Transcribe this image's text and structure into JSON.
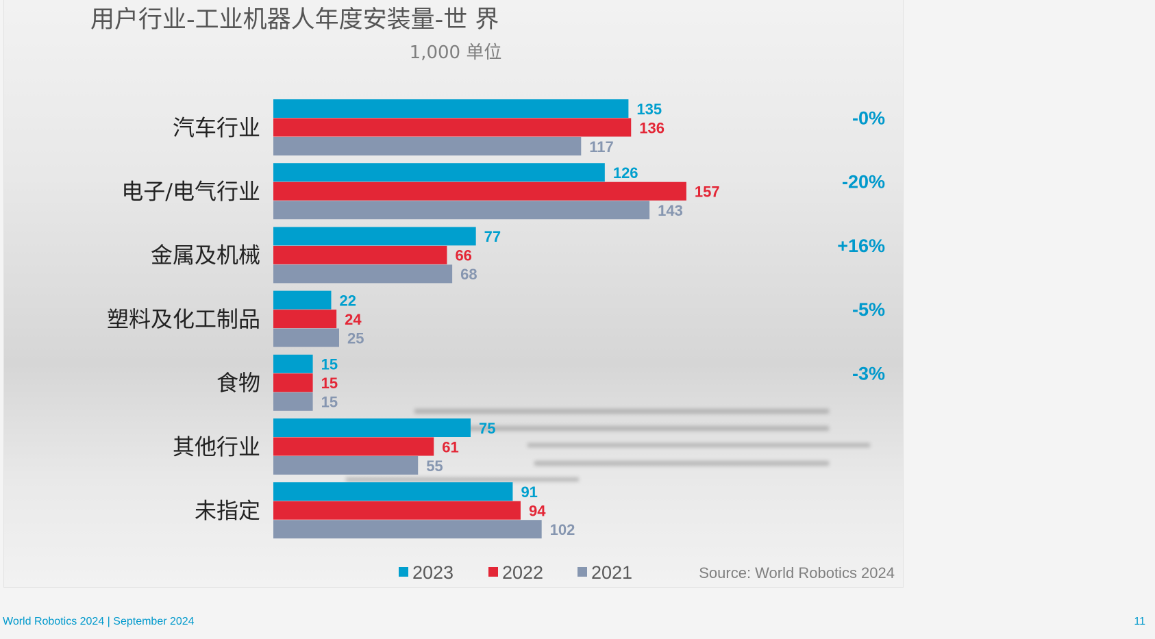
{
  "chart_data": {
    "type": "bar",
    "orientation": "horizontal",
    "title": "用户行业-工业机器人年度安装量-世 界",
    "subtitle": "1,000 单位",
    "categories": [
      "汽车行业",
      "电子/电气行业",
      "金属及机械",
      "塑料及化工制品",
      "食物",
      "其他行业",
      "未指定"
    ],
    "series": [
      {
        "name": "2023",
        "color": "#009fce",
        "values": [
          135,
          126,
          77,
          22,
          15,
          75,
          91
        ]
      },
      {
        "name": "2022",
        "color": "#e32636",
        "values": [
          136,
          157,
          66,
          24,
          15,
          61,
          94
        ]
      },
      {
        "name": "2021",
        "color": "#8696b0",
        "values": [
          117,
          143,
          68,
          25,
          15,
          55,
          102
        ]
      }
    ],
    "changes": [
      "-0%",
      "-20%",
      "+16%",
      "-5%",
      "-3%",
      "",
      ""
    ],
    "change_color": "#0099cc",
    "legend_position": "bottom",
    "grid": false,
    "source": "Source: World Robotics 2024"
  },
  "footer": {
    "left": "World Robotics 2024  | September 2024",
    "page_number": "11"
  }
}
